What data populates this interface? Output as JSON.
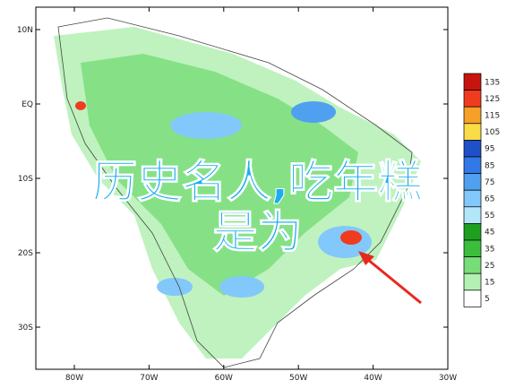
{
  "map": {
    "latitude_ticks": [
      {
        "value": 10,
        "label": "10N"
      },
      {
        "value": 0,
        "label": "EQ"
      },
      {
        "value": -10,
        "label": "10S"
      },
      {
        "value": -20,
        "label": "20S"
      },
      {
        "value": -30,
        "label": "30S"
      }
    ],
    "longitude_ticks": [
      {
        "value": -80,
        "label": "80W"
      },
      {
        "value": -70,
        "label": "70W"
      },
      {
        "value": -60,
        "label": "60W"
      },
      {
        "value": -50,
        "label": "50W"
      },
      {
        "value": -40,
        "label": "40W"
      },
      {
        "value": -30,
        "label": "30W"
      }
    ],
    "legend": [
      {
        "value": 135,
        "color": "#c8140f"
      },
      {
        "value": 125,
        "color": "#f03c1e"
      },
      {
        "value": 115,
        "color": "#f5a028"
      },
      {
        "value": 105,
        "color": "#fadc46"
      },
      {
        "value": 95,
        "color": "#1e50c8"
      },
      {
        "value": 85,
        "color": "#3278e6"
      },
      {
        "value": 75,
        "color": "#50a0f0"
      },
      {
        "value": 65,
        "color": "#82c8fa"
      },
      {
        "value": 55,
        "color": "#b4e6fa"
      },
      {
        "value": 45,
        "color": "#1ea01e"
      },
      {
        "value": 35,
        "color": "#3cbe3c"
      },
      {
        "value": 25,
        "color": "#78dc78"
      },
      {
        "value": 15,
        "color": "#b4f0b4"
      },
      {
        "value": 5,
        "color": "#ffffff"
      }
    ],
    "overlay_lines": [
      "历史名人,吃年糕",
      "是为"
    ]
  }
}
